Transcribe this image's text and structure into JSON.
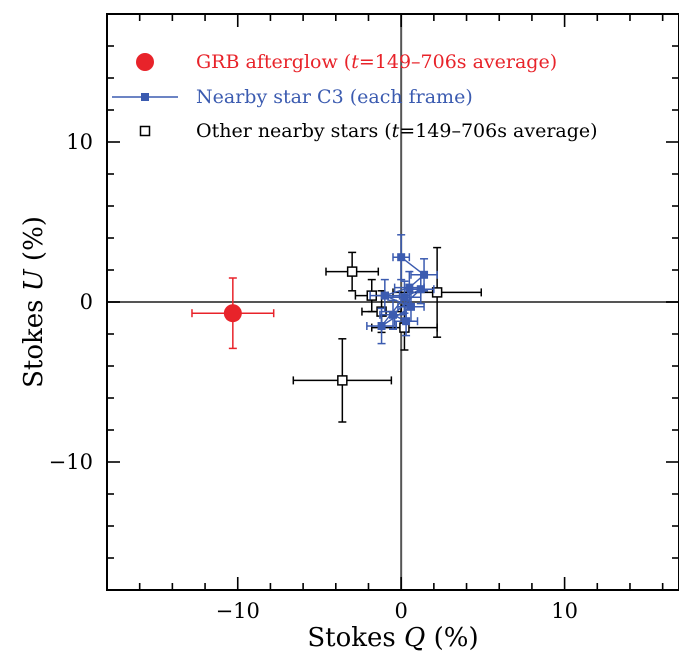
{
  "chart_data": {
    "type": "scatter",
    "xlabel": {
      "main": "Stokes ",
      "symbol": "Q",
      "unit": " (%)"
    },
    "ylabel": {
      "main": "Stokes ",
      "symbol": "U",
      "unit": " (%)"
    },
    "xlim": [
      -18,
      17
    ],
    "ylim": [
      -18,
      18
    ],
    "xticks": [
      -10,
      0,
      10
    ],
    "yticks": [
      -10,
      0,
      10
    ],
    "xtick_labels": [
      "−10",
      "0",
      "10"
    ],
    "ytick_labels": [
      "−10",
      "0",
      "10"
    ],
    "zero_lines": true,
    "legend_position": "top-left",
    "series": [
      {
        "name": "GRB afterglow",
        "legend": {
          "label": "GRB afterglow  (",
          "italic": "t",
          "rest": "=149–706s average)"
        },
        "marker": "filled-circle",
        "color": "#e8232a",
        "points": [
          {
            "x": -10.3,
            "y": -0.7,
            "xerr": 2.5,
            "yerr": 2.2
          }
        ]
      },
      {
        "name": "Nearby star C3",
        "legend": {
          "label": "Nearby star C3 (each frame)",
          "italic": "",
          "rest": ""
        },
        "marker": "filled-square-line",
        "color": "#3b5bb0",
        "points": [
          {
            "x": 0.0,
            "y": 2.8,
            "xerr": 0.5,
            "yerr": 1.4
          },
          {
            "x": 1.4,
            "y": 1.7,
            "xerr": 0.8,
            "yerr": 1.0
          },
          {
            "x": 0.5,
            "y": 0.9,
            "xerr": 0.9,
            "yerr": 1.0
          },
          {
            "x": -1.0,
            "y": 0.4,
            "xerr": 0.9,
            "yerr": 1.0
          },
          {
            "x": 0.6,
            "y": -0.3,
            "xerr": 0.8,
            "yerr": 0.9
          },
          {
            "x": -1.2,
            "y": -1.5,
            "xerr": 0.9,
            "yerr": 1.1
          },
          {
            "x": 0.2,
            "y": 0.3,
            "xerr": 1.0,
            "yerr": 1.0
          },
          {
            "x": 1.2,
            "y": 0.8,
            "xerr": 0.8,
            "yerr": 0.9
          },
          {
            "x": -0.5,
            "y": -0.8,
            "xerr": 0.8,
            "yerr": 0.9
          },
          {
            "x": 0.3,
            "y": -1.2,
            "xerr": 0.7,
            "yerr": 0.9
          }
        ]
      },
      {
        "name": "Other nearby stars",
        "legend": {
          "label": "Other nearby stars  (",
          "italic": "t",
          "rest": "=149–706s average)"
        },
        "marker": "open-square",
        "color": "#000000",
        "points": [
          {
            "x": -3.0,
            "y": 1.9,
            "xerr": 1.6,
            "yerr": 1.2
          },
          {
            "x": 2.2,
            "y": 0.6,
            "xerr": 2.7,
            "yerr": 2.8
          },
          {
            "x": -1.2,
            "y": -0.6,
            "xerr": 1.2,
            "yerr": 1.3
          },
          {
            "x": 0.2,
            "y": -1.6,
            "xerr": 2.0,
            "yerr": 1.4
          },
          {
            "x": -1.8,
            "y": 0.4,
            "xerr": 1.0,
            "yerr": 1.0
          },
          {
            "x": -3.6,
            "y": -4.9,
            "xerr": 3.0,
            "yerr": 2.6
          }
        ]
      }
    ]
  }
}
